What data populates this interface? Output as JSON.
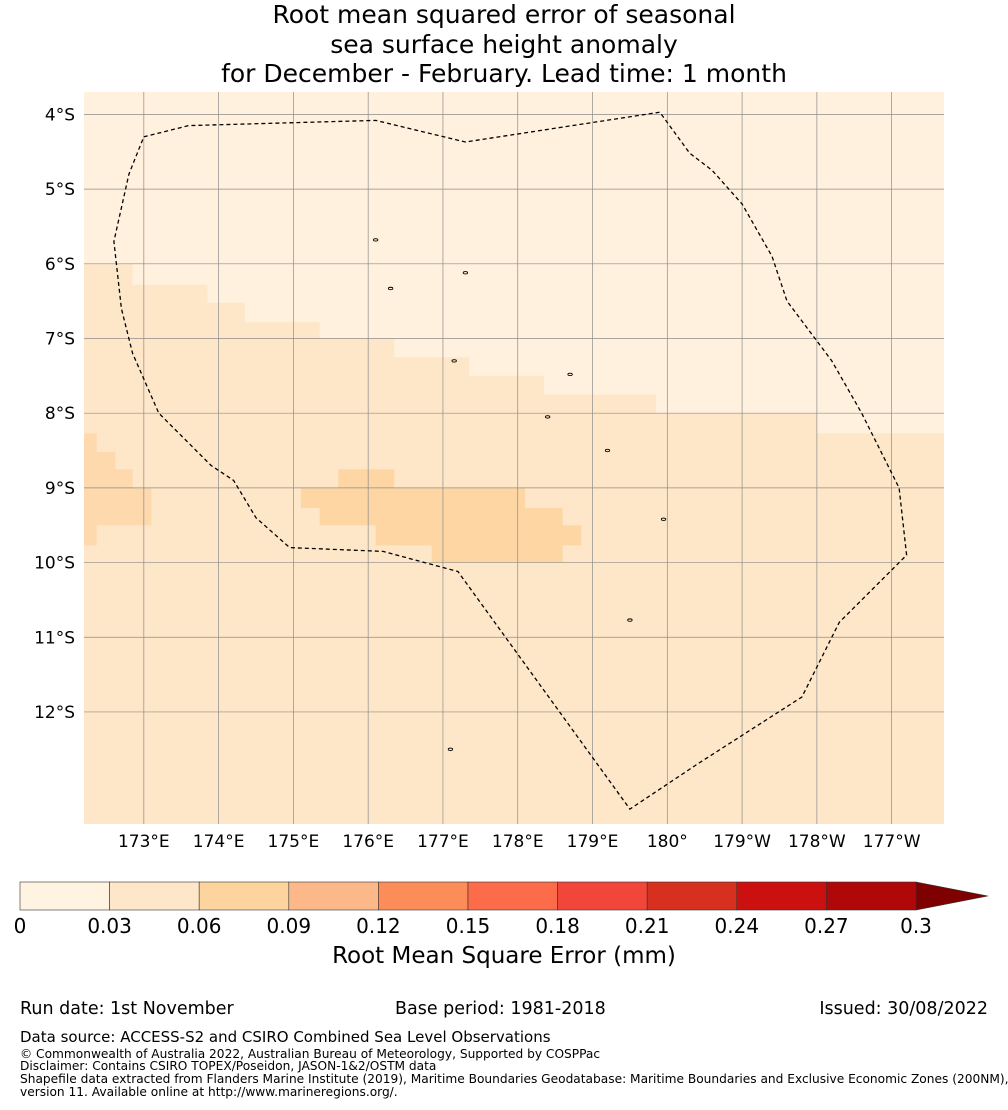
{
  "title": {
    "line1": "Root mean squared error of seasonal",
    "line2": "sea surface height anomaly",
    "line3": "for December - February. Lead time: 1 month"
  },
  "map": {
    "lon_range": [
      172.2,
      183.7
    ],
    "lat_range": [
      -13.5,
      -3.7
    ],
    "lat_ticks": [
      {
        "value": -4,
        "label": "4°S"
      },
      {
        "value": -5,
        "label": "5°S"
      },
      {
        "value": -6,
        "label": "6°S"
      },
      {
        "value": -7,
        "label": "7°S"
      },
      {
        "value": -8,
        "label": "8°S"
      },
      {
        "value": -9,
        "label": "9°S"
      },
      {
        "value": -10,
        "label": "10°S"
      },
      {
        "value": -11,
        "label": "11°S"
      },
      {
        "value": -12,
        "label": "12°S"
      }
    ],
    "lon_ticks": [
      {
        "value": 173,
        "label": "173°E"
      },
      {
        "value": 174,
        "label": "174°E"
      },
      {
        "value": 175,
        "label": "175°E"
      },
      {
        "value": 176,
        "label": "176°E"
      },
      {
        "value": 177,
        "label": "177°E"
      },
      {
        "value": 178,
        "label": "178°E"
      },
      {
        "value": 179,
        "label": "179°E"
      },
      {
        "value": 180,
        "label": "180°"
      },
      {
        "value": 181,
        "label": "179°W"
      },
      {
        "value": 182,
        "label": "178°W"
      },
      {
        "value": 183,
        "label": "177°W"
      }
    ],
    "rmse_regions": [
      {
        "name": "band-0.00-0.03",
        "color": "#fff1de",
        "polygon": [
          [
            172.2,
            -3.7
          ],
          [
            183.7,
            -3.7
          ],
          [
            183.7,
            -8.27
          ],
          [
            182.0,
            -8.27
          ],
          [
            182.0,
            -8.0
          ],
          [
            179.85,
            -8.0
          ],
          [
            179.85,
            -7.75
          ],
          [
            178.35,
            -7.75
          ],
          [
            178.35,
            -7.5
          ],
          [
            177.35,
            -7.5
          ],
          [
            177.35,
            -7.25
          ],
          [
            176.35,
            -7.25
          ],
          [
            176.35,
            -7.0
          ],
          [
            175.35,
            -7.0
          ],
          [
            175.35,
            -6.78
          ],
          [
            174.35,
            -6.78
          ],
          [
            174.35,
            -6.52
          ],
          [
            173.85,
            -6.52
          ],
          [
            173.85,
            -6.28
          ],
          [
            172.85,
            -6.28
          ],
          [
            172.85,
            -6.0
          ],
          [
            172.2,
            -6.0
          ]
        ]
      },
      {
        "name": "band-0.06-0.09-west",
        "color": "#fdd9ad",
        "polygon": [
          [
            172.2,
            -8.27
          ],
          [
            172.37,
            -8.27
          ],
          [
            172.37,
            -8.52
          ],
          [
            172.62,
            -8.52
          ],
          [
            172.62,
            -8.75
          ],
          [
            172.85,
            -8.75
          ],
          [
            172.85,
            -9.0
          ],
          [
            173.1,
            -9.0
          ],
          [
            173.1,
            -9.5
          ],
          [
            172.37,
            -9.5
          ],
          [
            172.37,
            -9.77
          ],
          [
            172.2,
            -9.77
          ]
        ]
      },
      {
        "name": "band-0.06-0.09-central",
        "color": "#fdd6a4",
        "polygon": [
          [
            175.6,
            -8.75
          ],
          [
            176.35,
            -8.75
          ],
          [
            176.35,
            -9.0
          ],
          [
            178.1,
            -9.0
          ],
          [
            178.1,
            -9.27
          ],
          [
            178.6,
            -9.27
          ],
          [
            178.6,
            -9.5
          ],
          [
            178.85,
            -9.5
          ],
          [
            178.85,
            -9.77
          ],
          [
            178.6,
            -9.77
          ],
          [
            178.6,
            -10.0
          ],
          [
            176.85,
            -10.0
          ],
          [
            176.85,
            -9.77
          ],
          [
            176.1,
            -9.77
          ],
          [
            176.1,
            -9.5
          ],
          [
            175.35,
            -9.5
          ],
          [
            175.35,
            -9.27
          ],
          [
            175.1,
            -9.27
          ],
          [
            175.1,
            -9.0
          ],
          [
            175.6,
            -9.0
          ]
        ]
      }
    ],
    "background_color": "#fee7c8",
    "eez_boundary": [
      [
        173.0,
        -4.3
      ],
      [
        173.6,
        -4.15
      ],
      [
        176.1,
        -4.08
      ],
      [
        177.3,
        -4.37
      ],
      [
        179.9,
        -3.97
      ],
      [
        180.3,
        -4.52
      ],
      [
        180.6,
        -4.75
      ],
      [
        181.0,
        -5.2
      ],
      [
        181.4,
        -5.9
      ],
      [
        181.6,
        -6.5
      ],
      [
        182.2,
        -7.3
      ],
      [
        182.6,
        -8.0
      ],
      [
        183.1,
        -9.0
      ],
      [
        183.2,
        -9.9
      ],
      [
        182.3,
        -10.8
      ],
      [
        181.8,
        -11.8
      ],
      [
        180.4,
        -12.7
      ],
      [
        179.5,
        -13.3
      ],
      [
        177.2,
        -10.12
      ],
      [
        176.2,
        -9.85
      ],
      [
        174.95,
        -9.8
      ],
      [
        174.5,
        -9.4
      ],
      [
        174.2,
        -8.9
      ],
      [
        173.9,
        -8.7
      ],
      [
        173.2,
        -8.0
      ],
      [
        172.85,
        -7.2
      ],
      [
        172.7,
        -6.6
      ],
      [
        172.6,
        -5.7
      ],
      [
        172.8,
        -4.8
      ]
    ],
    "islands": [
      [
        176.1,
        -5.68
      ],
      [
        176.3,
        -6.33
      ],
      [
        177.3,
        -6.12
      ],
      [
        178.7,
        -7.48
      ],
      [
        177.15,
        -7.3
      ],
      [
        178.4,
        -8.05
      ],
      [
        179.2,
        -8.5
      ],
      [
        179.95,
        -9.42
      ],
      [
        179.5,
        -10.77
      ],
      [
        177.1,
        -12.5
      ]
    ]
  },
  "colorbar": {
    "ticks": [
      "0",
      "0.03",
      "0.06",
      "0.09",
      "0.12",
      "0.15",
      "0.18",
      "0.21",
      "0.24",
      "0.27",
      "0.3"
    ],
    "colors": [
      "#fff3e2",
      "#fee7c8",
      "#fdd49e",
      "#fdb88a",
      "#fc8d59",
      "#fc6b4a",
      "#f2463a",
      "#d7301f",
      "#cc1010",
      "#b00808",
      "#7f0000"
    ],
    "extend_color": "#7f0000",
    "label": "Root Mean Square Error (mm)"
  },
  "footer": {
    "run_date": "Run date: 1st November",
    "base_period": "Base period: 1981-2018",
    "issued": "Issued: 30/08/2022",
    "data_source": "Data source: ACCESS-S2 and CSIRO Combined Sea Level Observations",
    "copyright": "© Commonwealth of Australia 2022, Australian Bureau of Meteorology, Supported by COSPPac",
    "disclaimer": "Disclaimer: Contains CSIRO TOPEX/Poseidon, JASON-1&2/OSTM data",
    "shapefile_1": "Shapefile data extracted from Flanders Marine Institute (2019), Maritime Boundaries Geodatabase: Maritime Boundaries and Exclusive Economic Zones (200NM),",
    "shapefile_2": "version 11. Available online at http://www.marineregions.org/."
  }
}
